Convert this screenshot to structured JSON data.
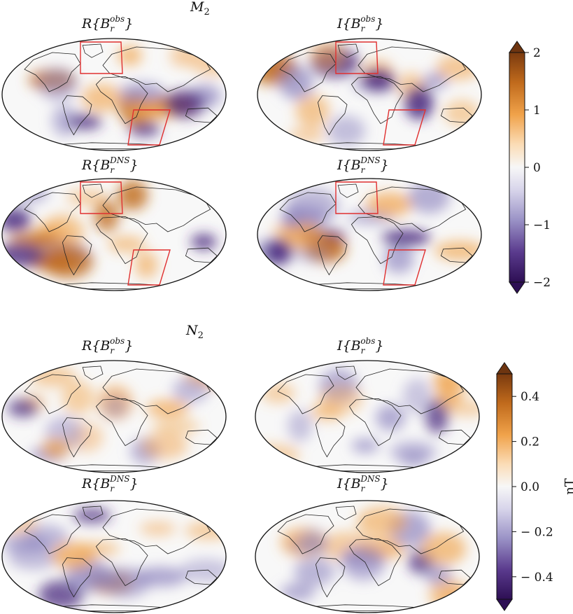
{
  "chart_data": [
    {
      "type": "heatmap",
      "projection": "Mollweide",
      "title": "M",
      "title_subscript": "2",
      "units": "nT",
      "colorbar": {
        "range": [
          -2,
          2
        ],
        "extend": "both",
        "ticks": [
          2,
          1,
          0,
          -1,
          -2
        ],
        "tick_labels": [
          "2",
          "1",
          "0",
          "−1",
          "−2"
        ],
        "colormap": "PuOr_r",
        "colors": {
          "max": "#7a3a0f",
          "mid_pos": "#e9a14a",
          "zero": "#f7f7f7",
          "mid_neg": "#a9a3cc",
          "min": "#3b1a63"
        }
      },
      "panels": [
        {
          "head": "R",
          "sup": "obs"
        },
        {
          "head": "I",
          "sup": "obs"
        },
        {
          "head": "R",
          "sup": "DNS"
        },
        {
          "head": "I",
          "sup": "DNS"
        }
      ],
      "regions_highlighted": [
        "north-atlantic-box",
        "south-west-indian-ocean-box"
      ],
      "highlight_color": "#e03030"
    },
    {
      "type": "heatmap",
      "projection": "Mollweide",
      "title": "N",
      "title_subscript": "2",
      "units": "nT",
      "colorbar": {
        "range": [
          -0.5,
          0.5
        ],
        "extend": "both",
        "ticks": [
          0.4,
          0.2,
          0.0,
          -0.2,
          -0.4
        ],
        "tick_labels": [
          "0.4",
          "0.2",
          "0.0",
          "− 0.2",
          "− 0.4"
        ],
        "colormap": "PuOr_r"
      },
      "panels": [
        {
          "head": "R",
          "sup": "obs"
        },
        {
          "head": "I",
          "sup": "obs"
        },
        {
          "head": "R",
          "sup": "DNS"
        },
        {
          "head": "I",
          "sup": "DNS"
        }
      ]
    }
  ]
}
